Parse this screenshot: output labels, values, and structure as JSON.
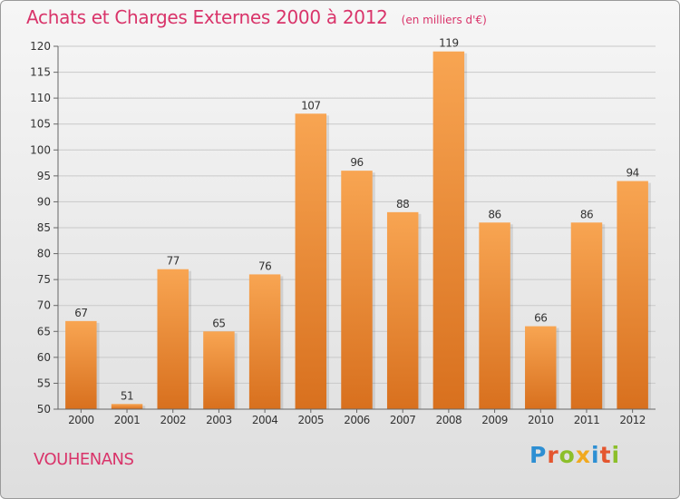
{
  "chart_data": {
    "type": "bar",
    "title": "Achats et Charges Externes 2000 à 2012",
    "subtitle": "(en milliers d'€)",
    "categories": [
      "2000",
      "2001",
      "2002",
      "2003",
      "2004",
      "2005",
      "2006",
      "2007",
      "2008",
      "2009",
      "2010",
      "2011",
      "2012"
    ],
    "values": [
      67,
      51,
      77,
      65,
      76,
      107,
      96,
      88,
      119,
      86,
      66,
      86,
      94
    ],
    "ylim": [
      50,
      120
    ],
    "yticks": [
      50,
      55,
      60,
      65,
      70,
      75,
      80,
      85,
      90,
      95,
      100,
      105,
      110,
      115,
      120
    ],
    "grid": true,
    "bar_colors": {
      "top": "#f8a552",
      "bottom": "#d8701e"
    }
  },
  "location": "VOUHENANS",
  "logo": {
    "letters": [
      "P",
      "r",
      "o",
      "x",
      "i",
      "t",
      "i"
    ],
    "colors": [
      "#2d8fd3",
      "#e4562f",
      "#8cbf2a",
      "#f1a91f",
      "#2d8fd3",
      "#e4562f",
      "#8cbf2a"
    ]
  }
}
